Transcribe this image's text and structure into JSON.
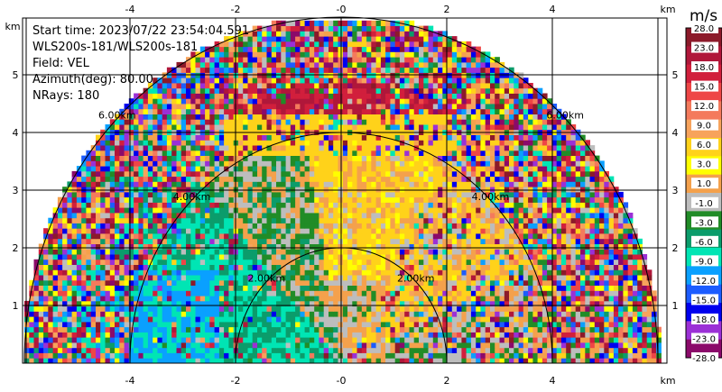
{
  "info": {
    "start_time": "Start time: 2023/07/22 23:54:04.591",
    "station": "WLS200s-181/WLS200s-181",
    "field": "Field: VEL",
    "azimuth": "Azimuth(deg): 80.00",
    "nrays": "NRays: 180"
  },
  "colorbar": {
    "unit": "m/s",
    "labels": [
      "28.0",
      "23.0",
      "18.0",
      "15.0",
      "12.0",
      "9.0",
      "6.0",
      "3.0",
      "1.0",
      "-1.0",
      "-3.0",
      "-6.0",
      "-9.0",
      "-12.0",
      "-15.0",
      "-18.0",
      "-23.0",
      "-28.0"
    ],
    "colors": [
      "#8c1a2a",
      "#b0173a",
      "#d11f3c",
      "#ee4646",
      "#f47a5c",
      "#f7a35c",
      "#ffd21a",
      "#ffff00",
      "#f4a14c",
      "#bdbdbd",
      "#218c27",
      "#0b9c6b",
      "#00e5b4",
      "#0aa0ff",
      "#1c5cff",
      "#0000ee",
      "#9b30d6",
      "#8b0a6a"
    ]
  },
  "chart_data": {
    "type": "heatmap",
    "title": "",
    "x_unit": "km",
    "y_unit": "km",
    "xlim": [
      -5.9,
      6.05
    ],
    "ylim": [
      -0.01,
      5.85
    ],
    "x_ticks": [
      "-4",
      "-2",
      "-0",
      "2",
      "4"
    ],
    "y_ticks": [
      "1",
      "2",
      "3",
      "4",
      "5"
    ],
    "range_rings_km": [
      2,
      4,
      6
    ],
    "ring_labels": [
      "2.00km",
      "4.00km",
      "6.00km"
    ],
    "grid": true
  }
}
